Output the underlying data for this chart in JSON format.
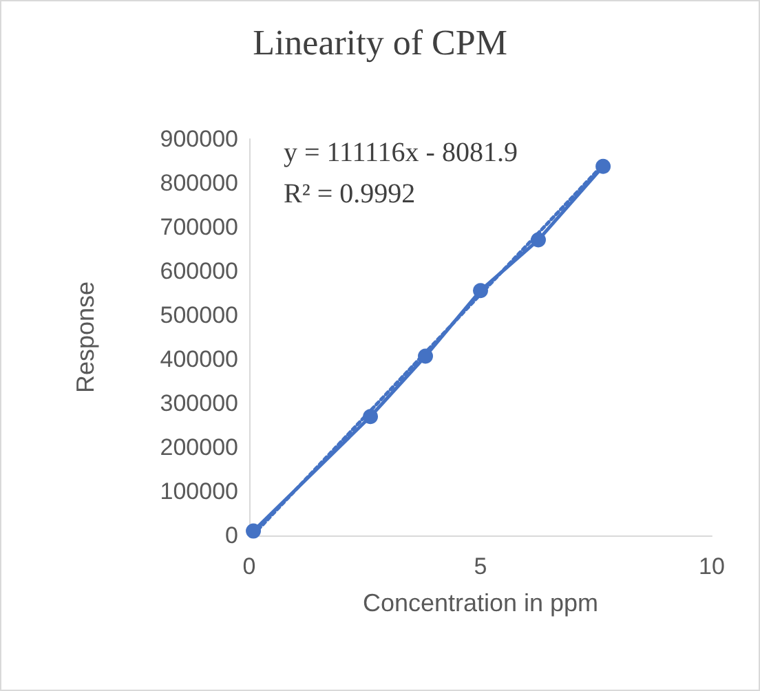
{
  "chart_data": {
    "type": "line",
    "title": "Linearity of CPM",
    "xlabel": "Concentration in ppm",
    "ylabel": "Response",
    "annotations": [
      "y = 111116x - 8081.9",
      "R² = 0.9992"
    ],
    "series": [
      {
        "color": "#4472c4",
        "x": [
          0.09,
          2.62,
          3.81,
          5.0,
          6.25,
          7.65
        ],
        "values": [
          10000,
          270000,
          407000,
          556000,
          671000,
          838000
        ],
        "marker": "circle",
        "line_style": "solid"
      },
      {
        "type": "line",
        "color": "#4472c4",
        "x": [
          0.09,
          7.65
        ],
        "values": [
          2000,
          842000
        ],
        "marker": "none",
        "line_style": "dotted"
      }
    ],
    "xlim": [
      0,
      10
    ],
    "xticks": [
      0,
      5,
      10
    ],
    "ylim": [
      0,
      900000
    ],
    "yticks": [
      0,
      100000,
      200000,
      300000,
      400000,
      500000,
      600000,
      700000,
      800000,
      900000
    ],
    "grid": false
  }
}
